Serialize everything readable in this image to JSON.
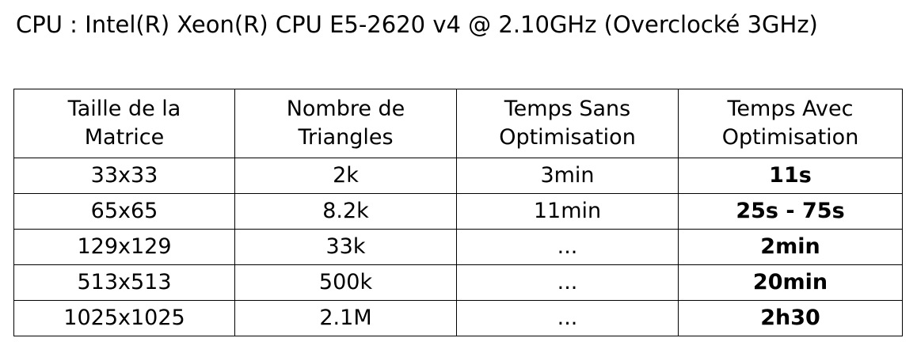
{
  "cpu_text": "CPU : Intel(R) Xeon(R) CPU E5-2620 v4 @ 2.10GHz (Overclocké  3GHz)",
  "table": {
    "headers": [
      [
        "Taille de la",
        "Matrice"
      ],
      [
        "Nombre de",
        "Triangles"
      ],
      [
        "Temps Sans",
        "Optimisation"
      ],
      [
        "Temps Avec",
        "Optimisation"
      ]
    ],
    "rows": [
      [
        "33x33",
        "2k",
        "3min",
        "11s"
      ],
      [
        "65x65",
        "8.2k",
        "11min",
        "25s - 75s"
      ],
      [
        "129x129",
        "33k",
        "...",
        "2min"
      ],
      [
        "513x513",
        "500k",
        "...",
        "20min"
      ],
      [
        "1025x1025",
        "2.1M",
        "...",
        "2h30"
      ]
    ]
  }
}
